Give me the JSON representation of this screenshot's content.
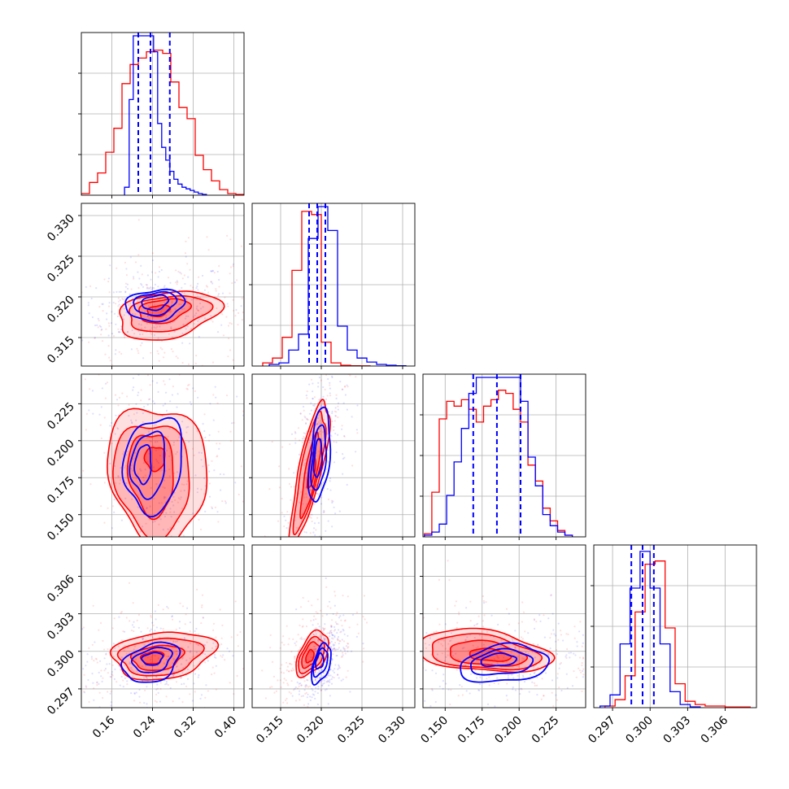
{
  "chart_data": {
    "type": "corner",
    "grid": true,
    "series_colors": {
      "blue": "#0000ff",
      "red": "#ff0000"
    },
    "parameters": [
      {
        "xlim": [
          0.1,
          0.42
        ],
        "ticks": [
          0.16,
          0.24,
          0.32,
          0.4
        ],
        "tick_labels": [
          "0.16",
          "0.24",
          "0.32",
          "0.40"
        ]
      },
      {
        "xlim": [
          0.3115,
          0.3315
        ],
        "ticks": [
          0.315,
          0.32,
          0.325,
          0.33
        ],
        "tick_labels": [
          "0.315",
          "0.320",
          "0.325",
          "0.330"
        ]
      },
      {
        "xlim": [
          0.135,
          0.245
        ],
        "ticks": [
          0.15,
          0.175,
          0.2,
          0.225
        ],
        "tick_labels": [
          "0.150",
          "0.175",
          "0.200",
          "0.225"
        ]
      },
      {
        "xlim": [
          0.2955,
          0.3085
        ],
        "ticks": [
          0.297,
          0.3,
          0.303,
          0.306
        ],
        "tick_labels": [
          "0.297",
          "0.300",
          "0.303",
          "0.306"
        ]
      }
    ],
    "diagonal": [
      {
        "blue": {
          "edges": [
            0.185,
            0.194,
            0.202,
            0.21,
            0.218,
            0.226,
            0.234,
            0.242,
            0.25,
            0.258,
            0.266,
            0.274,
            0.282,
            0.29,
            0.298,
            0.306,
            0.314,
            0.322,
            0.33,
            0.338,
            0.346
          ],
          "counts": [
            0.05,
            0.6,
            1.0,
            1.0,
            1.0,
            1.0,
            1.0,
            0.9,
            0.45,
            0.3,
            0.22,
            0.15,
            0.1,
            0.07,
            0.05,
            0.04,
            0.03,
            0.02,
            0.01,
            0.005
          ]
        },
        "red": {
          "edges": [
            0.1,
            0.116,
            0.132,
            0.148,
            0.164,
            0.18,
            0.196,
            0.212,
            0.228,
            0.244,
            0.26,
            0.276,
            0.292,
            0.308,
            0.324,
            0.34,
            0.356,
            0.372,
            0.388,
            0.404,
            0.42
          ],
          "counts": [
            0.01,
            0.08,
            0.14,
            0.27,
            0.42,
            0.7,
            0.82,
            0.86,
            0.9,
            0.91,
            0.89,
            0.71,
            0.55,
            0.48,
            0.25,
            0.16,
            0.09,
            0.035,
            0.01,
            0.005
          ]
        },
        "quantiles": [
          0.212,
          0.236,
          0.274
        ]
      },
      {
        "blue": {
          "edges": [
            0.3136,
            0.3148,
            0.316,
            0.3172,
            0.3184,
            0.3196,
            0.3208,
            0.322,
            0.3232,
            0.3244,
            0.3256,
            0.3268,
            0.328,
            0.3292,
            0.3304
          ],
          "counts": [
            0.01,
            0.02,
            0.1,
            0.2,
            0.8,
            1.0,
            0.85,
            0.25,
            0.1,
            0.05,
            0.025,
            0.01,
            0.005,
            0.002
          ]
        },
        "red": {
          "edges": [
            0.3128,
            0.314,
            0.3152,
            0.3164,
            0.3176,
            0.3188,
            0.32,
            0.3212,
            0.3224,
            0.3236,
            0.3248,
            0.326
          ],
          "counts": [
            0.02,
            0.05,
            0.18,
            0.6,
            0.97,
            0.95,
            0.15,
            0.02,
            0.005,
            0.002,
            0.001
          ]
        },
        "quantiles": [
          0.3185,
          0.3195,
          0.3205
        ]
      },
      {
        "blue": {
          "edges": [
            0.136,
            0.141,
            0.146,
            0.151,
            0.156,
            0.161,
            0.166,
            0.171,
            0.176,
            0.181,
            0.186,
            0.191,
            0.196,
            0.201,
            0.206,
            0.211,
            0.216,
            0.221,
            0.226,
            0.231,
            0.236
          ],
          "counts": [
            0.01,
            0.03,
            0.08,
            0.26,
            0.47,
            0.68,
            0.9,
            1.0,
            1.0,
            1.0,
            1.0,
            1.0,
            1.0,
            0.85,
            0.5,
            0.32,
            0.14,
            0.07,
            0.03,
            0.01
          ]
        },
        "red": {
          "edges": [
            0.136,
            0.141,
            0.146,
            0.151,
            0.156,
            0.161,
            0.166,
            0.171,
            0.176,
            0.181,
            0.186,
            0.191,
            0.196,
            0.201,
            0.206,
            0.211,
            0.216,
            0.221,
            0.226,
            0.231,
            0.236
          ],
          "counts": [
            0.02,
            0.28,
            0.74,
            0.85,
            0.82,
            0.86,
            0.8,
            0.72,
            0.82,
            0.86,
            0.92,
            0.9,
            0.8,
            0.72,
            0.45,
            0.35,
            0.18,
            0.1,
            0.04,
            0.01
          ]
        },
        "quantiles": [
          0.169,
          0.185,
          0.201
        ]
      },
      {
        "blue": {
          "edges": [
            0.296,
            0.2968,
            0.2976,
            0.2984,
            0.2992,
            0.3,
            0.3008,
            0.3016,
            0.3024,
            0.3032,
            0.304
          ],
          "counts": [
            0.01,
            0.08,
            0.4,
            0.75,
            0.98,
            0.75,
            0.4,
            0.1,
            0.02,
            0.005
          ]
        },
        "red": {
          "edges": [
            0.2964,
            0.2972,
            0.298,
            0.2988,
            0.2996,
            0.3004,
            0.3012,
            0.302,
            0.3028,
            0.3036,
            0.3044,
            0.306,
            0.308
          ],
          "counts": [
            0.01,
            0.05,
            0.2,
            0.6,
            0.9,
            0.92,
            0.5,
            0.15,
            0.04,
            0.02,
            0.01,
            0.004
          ]
        },
        "quantiles": [
          0.2985,
          0.2994,
          0.3003
        ]
      }
    ],
    "contours": [
      {
        "row": 1,
        "col": 0,
        "blue": [
          {
            "cx": 0.245,
            "cy": 0.3193,
            "sx": 0.026,
            "sy": 0.0009,
            "r": 0.25
          },
          {
            "cx": 0.245,
            "cy": 0.3192,
            "sx": 0.042,
            "sy": 0.0014,
            "r": 0.2
          },
          {
            "cx": 0.245,
            "cy": 0.319,
            "sx": 0.058,
            "sy": 0.0019,
            "r": 0.15
          }
        ],
        "red": [
          {
            "cx": 0.252,
            "cy": 0.3183,
            "sx": 0.022,
            "sy": 0.0007,
            "r": 0.3
          },
          {
            "cx": 0.262,
            "cy": 0.3183,
            "sx": 0.05,
            "sy": 0.0015,
            "r": 0.3
          },
          {
            "cx": 0.27,
            "cy": 0.318,
            "sx": 0.08,
            "sy": 0.0022,
            "r": 0.3
          },
          {
            "cx": 0.27,
            "cy": 0.3178,
            "sx": 0.1,
            "sy": 0.003,
            "r": 0.3
          }
        ]
      },
      {
        "row": 2,
        "col": 0,
        "blue": [
          {
            "cx": 0.222,
            "cy": 0.184,
            "sx": 0.016,
            "sy": 0.013,
            "r": 0.1
          },
          {
            "cx": 0.232,
            "cy": 0.184,
            "sx": 0.034,
            "sy": 0.022,
            "r": 0.15
          },
          {
            "cx": 0.242,
            "cy": 0.184,
            "sx": 0.058,
            "sy": 0.032,
            "r": 0.15
          }
        ],
        "red": [
          {
            "cx": 0.245,
            "cy": 0.188,
            "sx": 0.02,
            "sy": 0.008,
            "r": 0.0
          },
          {
            "cx": 0.238,
            "cy": 0.178,
            "sx": 0.045,
            "sy": 0.028,
            "r": -0.1
          },
          {
            "cx": 0.24,
            "cy": 0.175,
            "sx": 0.075,
            "sy": 0.038,
            "r": -0.1
          },
          {
            "cx": 0.25,
            "cy": 0.178,
            "sx": 0.098,
            "sy": 0.046,
            "r": -0.1
          }
        ]
      },
      {
        "row": 2,
        "col": 1,
        "blue": [
          {
            "cx": 0.3196,
            "cy": 0.188,
            "sx": 0.0005,
            "sy": 0.013,
            "r": 0.3
          },
          {
            "cx": 0.3197,
            "cy": 0.188,
            "sx": 0.0009,
            "sy": 0.022,
            "r": 0.4
          },
          {
            "cx": 0.3198,
            "cy": 0.19,
            "sx": 0.0013,
            "sy": 0.032,
            "r": 0.4
          }
        ],
        "red": [
          {
            "cx": 0.3188,
            "cy": 0.18,
            "sx": 0.0005,
            "sy": 0.012,
            "r": 0.6
          },
          {
            "cx": 0.3187,
            "cy": 0.178,
            "sx": 0.0012,
            "sy": 0.028,
            "r": 0.8
          },
          {
            "cx": 0.3186,
            "cy": 0.18,
            "sx": 0.0019,
            "sy": 0.04,
            "r": 0.8
          },
          {
            "cx": 0.3186,
            "cy": 0.18,
            "sx": 0.0024,
            "sy": 0.048,
            "r": 0.8
          }
        ]
      },
      {
        "row": 3,
        "col": 0,
        "blue": [
          {
            "cx": 0.24,
            "cy": 0.2994,
            "sx": 0.02,
            "sy": 0.0005,
            "r": 0.2
          },
          {
            "cx": 0.24,
            "cy": 0.2993,
            "sx": 0.038,
            "sy": 0.001,
            "r": 0.3
          },
          {
            "cx": 0.238,
            "cy": 0.2991,
            "sx": 0.055,
            "sy": 0.0016,
            "r": 0.3
          }
        ],
        "red": [
          {
            "cx": 0.24,
            "cy": 0.2995,
            "sx": 0.022,
            "sy": 0.0005,
            "r": 0.2
          },
          {
            "cx": 0.25,
            "cy": 0.2995,
            "sx": 0.05,
            "sy": 0.001,
            "r": 0.2
          },
          {
            "cx": 0.255,
            "cy": 0.2996,
            "sx": 0.08,
            "sy": 0.0015,
            "r": 0.2
          },
          {
            "cx": 0.26,
            "cy": 0.2997,
            "sx": 0.1,
            "sy": 0.0019,
            "r": 0.2
          }
        ]
      },
      {
        "row": 3,
        "col": 1,
        "blue": [
          {
            "cx": 0.3198,
            "cy": 0.2992,
            "sx": 0.0005,
            "sy": 0.0006,
            "r": 0.3
          },
          {
            "cx": 0.3199,
            "cy": 0.2991,
            "sx": 0.0009,
            "sy": 0.0011,
            "r": 0.5
          },
          {
            "cx": 0.32,
            "cy": 0.299,
            "sx": 0.0012,
            "sy": 0.0016,
            "r": 0.5
          }
        ],
        "red": [
          {
            "cx": 0.3186,
            "cy": 0.2996,
            "sx": 0.0005,
            "sy": 0.0005,
            "r": 0.4
          },
          {
            "cx": 0.3187,
            "cy": 0.2997,
            "sx": 0.0011,
            "sy": 0.001,
            "r": 0.5
          },
          {
            "cx": 0.3188,
            "cy": 0.2997,
            "sx": 0.0016,
            "sy": 0.0014,
            "r": 0.5
          },
          {
            "cx": 0.3189,
            "cy": 0.2998,
            "sx": 0.002,
            "sy": 0.0018,
            "r": 0.5
          }
        ]
      },
      {
        "row": 3,
        "col": 2,
        "blue": [
          {
            "cx": 0.186,
            "cy": 0.2993,
            "sx": 0.012,
            "sy": 0.0005,
            "r": 0.2
          },
          {
            "cx": 0.188,
            "cy": 0.2991,
            "sx": 0.021,
            "sy": 0.001,
            "r": 0.2
          },
          {
            "cx": 0.19,
            "cy": 0.299,
            "sx": 0.03,
            "sy": 0.0015,
            "r": 0.2
          }
        ],
        "red": [
          {
            "cx": 0.18,
            "cy": 0.2997,
            "sx": 0.014,
            "sy": 0.0005,
            "r": -0.3
          },
          {
            "cx": 0.178,
            "cy": 0.2998,
            "sx": 0.026,
            "sy": 0.001,
            "r": -0.3
          },
          {
            "cx": 0.176,
            "cy": 0.2999,
            "sx": 0.037,
            "sy": 0.0014,
            "r": -0.3
          },
          {
            "cx": 0.176,
            "cy": 0.3,
            "sx": 0.045,
            "sy": 0.0017,
            "r": -0.3
          }
        ]
      }
    ]
  }
}
